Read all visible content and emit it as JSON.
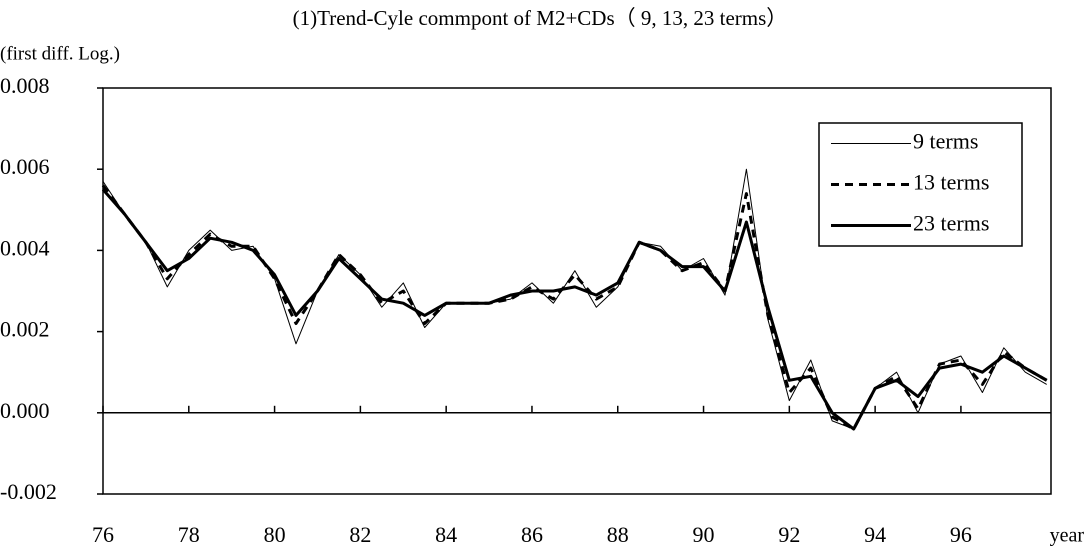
{
  "chart_data": {
    "type": "line",
    "title": "(1)Trend-Cyle commpont of M2+CDs（ 9, 13, 23 terms）",
    "y_label": "(first diff. Log.)",
    "x_label": "year",
    "x": [
      76,
      76.5,
      77,
      77.5,
      78,
      78.5,
      79,
      79.5,
      80,
      80.5,
      81,
      81.5,
      82,
      82.5,
      83,
      83.5,
      84,
      84.5,
      85,
      85.5,
      86,
      86.5,
      87,
      87.5,
      88,
      88.5,
      89,
      89.5,
      90,
      90.5,
      91,
      91.5,
      92,
      92.5,
      93,
      93.5,
      94,
      94.5,
      95,
      95.5,
      96,
      96.5,
      97,
      97.5,
      98
    ],
    "series": [
      {
        "name": "9 terms",
        "color": "#000000",
        "style": "solid",
        "width": 1,
        "values": [
          0.0057,
          0.0049,
          0.0042,
          0.0031,
          0.004,
          0.0045,
          0.004,
          0.0041,
          0.0033,
          0.0017,
          0.003,
          0.0039,
          0.0034,
          0.0026,
          0.0032,
          0.0021,
          0.0027,
          0.0027,
          0.0027,
          0.0028,
          0.0032,
          0.0027,
          0.0035,
          0.0026,
          0.0031,
          0.0042,
          0.0041,
          0.0035,
          0.0038,
          0.0029,
          0.006,
          0.0023,
          0.0003,
          0.0013,
          -0.0002,
          -0.0004,
          0.0006,
          0.001,
          0.0,
          0.0012,
          0.0014,
          0.0005,
          0.0016,
          0.001,
          0.0007
        ]
      },
      {
        "name": "13 terms",
        "color": "#000000",
        "style": "dashed",
        "width": 3,
        "values": [
          0.0056,
          0.0049,
          0.0042,
          0.0033,
          0.0039,
          0.0044,
          0.0041,
          0.0041,
          0.0033,
          0.0022,
          0.003,
          0.0039,
          0.0034,
          0.0027,
          0.003,
          0.0022,
          0.0027,
          0.0027,
          0.0027,
          0.0028,
          0.0031,
          0.0028,
          0.0034,
          0.0028,
          0.0031,
          0.0042,
          0.004,
          0.0035,
          0.0037,
          0.003,
          0.0054,
          0.0024,
          0.0005,
          0.0011,
          -0.0001,
          -0.0004,
          0.0006,
          0.0009,
          0.0001,
          0.0012,
          0.0013,
          0.0007,
          0.0015,
          0.0011,
          0.0008
        ]
      },
      {
        "name": "23 terms",
        "color": "#000000",
        "style": "solid",
        "width": 3,
        "values": [
          0.0055,
          0.0049,
          0.0042,
          0.0035,
          0.0038,
          0.0043,
          0.0042,
          0.004,
          0.0034,
          0.0024,
          0.003,
          0.0038,
          0.0033,
          0.0028,
          0.0027,
          0.0024,
          0.0027,
          0.0027,
          0.0027,
          0.0029,
          0.003,
          0.003,
          0.0031,
          0.0029,
          0.0032,
          0.0042,
          0.004,
          0.0036,
          0.0036,
          0.003,
          0.0047,
          0.0026,
          0.0008,
          0.0009,
          0.0,
          -0.0004,
          0.0006,
          0.0008,
          0.0004,
          0.0011,
          0.0012,
          0.001,
          0.0014,
          0.0011,
          0.0008
        ]
      }
    ],
    "xlim": [
      76,
      98.1
    ],
    "xticks": [
      76,
      78,
      80,
      82,
      84,
      86,
      88,
      90,
      92,
      94,
      96
    ],
    "ylim": [
      -0.002,
      0.008
    ],
    "yticks": [
      {
        "value": -0.002,
        "label": "-0.002"
      },
      {
        "value": 0,
        "label": "0.000"
      },
      {
        "value": 0.002,
        "label": "0.002"
      },
      {
        "value": 0.004,
        "label": "0.004"
      },
      {
        "value": 0.006,
        "label": "0.006"
      },
      {
        "value": 0.008,
        "label": "0.008"
      }
    ],
    "grid": false,
    "legend": "top-right"
  }
}
